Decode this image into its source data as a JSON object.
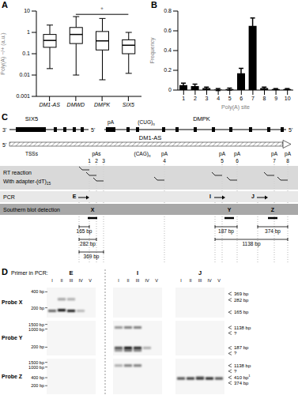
{
  "chart_data": [
    {
      "panel": "A",
      "type": "box",
      "categories": [
        "DM1-AS",
        "DMWD",
        "DMPK",
        "SIX5"
      ],
      "boxes": [
        {
          "min": 0.02,
          "q1": 0.2,
          "median": 0.42,
          "q3": 0.8,
          "max": 2.2
        },
        {
          "min": 0.01,
          "q1": 0.3,
          "median": 0.8,
          "q3": 1.7,
          "max": 5.5
        },
        {
          "min": 0.006,
          "q1": 0.15,
          "median": 0.4,
          "q3": 1.1,
          "max": 4.5
        },
        {
          "min": 0.012,
          "q1": 0.1,
          "median": 0.25,
          "q3": 0.45,
          "max": 1.0
        }
      ],
      "color": "#ffffff",
      "ylabel": "Poly(A) −/+ (a.u.)",
      "log": "y",
      "ylim": [
        0.001,
        10
      ],
      "yticks": [
        0.001,
        0.01,
        0.1,
        1,
        10
      ],
      "annotations": [
        {
          "text": "*",
          "from": "DMWD",
          "to": "SIX5",
          "y": 7
        }
      ]
    },
    {
      "panel": "B",
      "type": "bar",
      "categories": [
        "1",
        "2",
        "3",
        "4",
        "5",
        "6",
        "7",
        "8",
        "9",
        "10"
      ],
      "values": [
        0.05,
        0.04,
        0.02,
        0.005,
        0.01,
        0.17,
        0.65,
        0.02,
        0.01,
        0.01
      ],
      "errors": [
        0.02,
        0.02,
        0.01,
        0.01,
        0.01,
        0.05,
        0.08,
        0.01,
        0.005,
        0.005
      ],
      "color": "#000000",
      "xlabel": "Poly(A) site",
      "ylabel": "Frequency",
      "ylim": [
        0,
        0.8
      ],
      "yticks": [
        0,
        0.2,
        0.4,
        0.6,
        0.8
      ]
    }
  ],
  "diagram": {
    "panel": "C",
    "genes": [
      {
        "name": "SIX5",
        "end_labels": [
          "3'",
          "5'"
        ]
      },
      {
        "name": "DMPK",
        "end_labels": [
          "5'"
        ],
        "marks": [
          "pA",
          {
            "text": "(CUG)",
            "sub": "n"
          }
        ]
      }
    ],
    "antisense": {
      "name": "DM1-AS",
      "end_label": "5'",
      "marks": [
        "TSSs",
        {
          "text": "(CAG)",
          "sub": "n"
        }
      ]
    },
    "sites": [
      1,
      2,
      3,
      4,
      5,
      6,
      7,
      8
    ],
    "site_labels": [
      {
        "text": "pAs",
        "sites": [
          1,
          2,
          3
        ]
      },
      {
        "text": "pA",
        "sites": [
          4
        ]
      },
      {
        "text": "pA",
        "sites": [
          5
        ]
      },
      {
        "text": "pA",
        "sites": [
          6
        ]
      },
      {
        "text": "pA",
        "sites": [
          7
        ]
      },
      {
        "text": "pA",
        "sites": [
          8
        ]
      }
    ],
    "rows": [
      {
        "title": "RT reaction",
        "subtitle": {
          "text": "With adapter-(dT)",
          "sub": "15"
        }
      },
      {
        "title": "PCR",
        "items": [
          "E",
          "I",
          "J"
        ]
      },
      {
        "title": "Southern blot detection",
        "items": [
          "X",
          "Y",
          "Z"
        ]
      }
    ],
    "products": [
      {
        "label": "165 bp",
        "from": "E",
        "to": 1
      },
      {
        "label": "282 bp",
        "from": "E",
        "to": 2
      },
      {
        "label": "369 bp",
        "from": "E",
        "to": 3
      },
      {
        "label": "187 bp",
        "from": "I",
        "to": 6
      },
      {
        "label": "1138 bp",
        "from": "I",
        "to": 8
      },
      {
        "label": "374 bp",
        "from": "J",
        "to": 8
      }
    ]
  },
  "blot": {
    "panel": "D",
    "header": "Primer in PCR:",
    "primers": [
      "E",
      "I",
      "J"
    ],
    "lanes": [
      "I",
      "II",
      "III",
      "IV",
      "V"
    ],
    "probes": [
      {
        "name": "Probe X",
        "ylim_bp": [
          140,
          450
        ],
        "ticks": [
          {
            "value": 400,
            "label": "400 bp"
          },
          {
            "value": 200,
            "label": "200 bp"
          }
        ],
        "markers": [
          {
            "bp": 369,
            "label": "369 bp"
          },
          {
            "bp": 282,
            "label": "282 bp"
          },
          {
            "bp": 165,
            "label": "165 bp"
          }
        ],
        "bands": [
          {
            "primer": "E",
            "lane": 1,
            "bp": 175,
            "intensity": 0.6
          },
          {
            "primer": "E",
            "lane": 2,
            "bp": 180,
            "intensity": 1
          },
          {
            "primer": "E",
            "lane": 3,
            "bp": 175,
            "intensity": 0.9
          },
          {
            "primer": "E",
            "lane": 4,
            "bp": 175,
            "intensity": 0.25
          },
          {
            "primer": "E",
            "lane": 2,
            "bp": 290,
            "intensity": 0.35
          },
          {
            "primer": "E",
            "lane": 3,
            "bp": 290,
            "intensity": 0.3
          }
        ]
      },
      {
        "name": "Probe Y",
        "ylim_bp": [
          110,
          1800
        ],
        "ticks": [
          {
            "value": 1500,
            "label": "1500 bp"
          },
          {
            "value": 1000,
            "label": "1000 bp"
          },
          {
            "value": 200,
            "label": "200 bp"
          }
        ],
        "markers": [
          {
            "bp": 1138,
            "label": "1138 bp"
          },
          {
            "bp": 700,
            "label": "?"
          },
          {
            "bp": 187,
            "label": "187 bp"
          },
          {
            "bp": 140,
            "label": "?"
          }
        ],
        "bands": [
          {
            "primer": "I",
            "lane": 1,
            "bp": 1138,
            "intensity": 0.4
          },
          {
            "primer": "I",
            "lane": 2,
            "bp": 1138,
            "intensity": 0.5
          },
          {
            "primer": "I",
            "lane": 3,
            "bp": 1138,
            "intensity": 0.5
          },
          {
            "primer": "I",
            "lane": 1,
            "bp": 187,
            "intensity": 0.7
          },
          {
            "primer": "I",
            "lane": 2,
            "bp": 187,
            "intensity": 1
          },
          {
            "primer": "I",
            "lane": 3,
            "bp": 187,
            "intensity": 0.9
          },
          {
            "primer": "I",
            "lane": 4,
            "bp": 187,
            "intensity": 0.3
          },
          {
            "primer": "I",
            "lane": 1,
            "bp": 150,
            "intensity": 0.4
          },
          {
            "primer": "I",
            "lane": 2,
            "bp": 150,
            "intensity": 0.6
          },
          {
            "primer": "I",
            "lane": 3,
            "bp": 150,
            "intensity": 0.5
          }
        ]
      },
      {
        "name": "Probe Z",
        "ylim_bp": [
          110,
          1800
        ],
        "ticks": [
          {
            "value": 1500,
            "label": "1500 bp"
          },
          {
            "value": 1000,
            "label": "1000 bp"
          },
          {
            "value": 400,
            "label": "400 bp"
          },
          {
            "value": 200,
            "label": "200 bp"
          }
        ],
        "markers": [
          {
            "bp": 1138,
            "label": "1138 bp"
          },
          {
            "bp": 700,
            "label": "?"
          },
          {
            "bp": 410,
            "label": "410 bp",
            "sup": "1"
          },
          {
            "bp": 374,
            "label": "374 bp"
          }
        ],
        "bands": [
          {
            "primer": "I",
            "lane": 1,
            "bp": 1138,
            "intensity": 0.3
          },
          {
            "primer": "I",
            "lane": 2,
            "bp": 1138,
            "intensity": 0.5
          },
          {
            "primer": "I",
            "lane": 3,
            "bp": 1138,
            "intensity": 0.5
          },
          {
            "primer": "J",
            "lane": 1,
            "bp": 374,
            "intensity": 0.7
          },
          {
            "primer": "J",
            "lane": 2,
            "bp": 374,
            "intensity": 0.8
          },
          {
            "primer": "J",
            "lane": 3,
            "bp": 374,
            "intensity": 0.8
          },
          {
            "primer": "J",
            "lane": 4,
            "bp": 374,
            "intensity": 0.9
          },
          {
            "primer": "J",
            "lane": 5,
            "bp": 374,
            "intensity": 0.7
          },
          {
            "primer": "J",
            "lane": 3,
            "bp": 410,
            "intensity": 0.3
          }
        ]
      }
    ]
  }
}
